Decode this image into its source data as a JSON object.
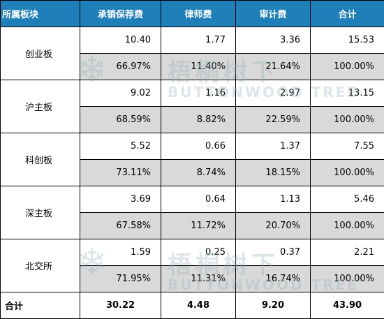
{
  "header": [
    "所属板块",
    "承销保荐费",
    "律师费",
    "审计费",
    "合计"
  ],
  "rows": [
    {
      "board": "创业板",
      "values": [
        "10.40",
        "1.77",
        "3.36",
        "15.53"
      ],
      "pct": [
        "66.97%",
        "11.40%",
        "21.64%",
        "100.00%"
      ]
    },
    {
      "board": "沪主板",
      "values": [
        "9.02",
        "1.16",
        "2.97",
        "13.15"
      ],
      "pct": [
        "68.59%",
        "8.82%",
        "22.59%",
        "100.00%"
      ]
    },
    {
      "board": "科创板",
      "values": [
        "5.52",
        "0.66",
        "1.37",
        "7.55"
      ],
      "pct": [
        "73.11%",
        "8.74%",
        "18.15%",
        "100.00%"
      ]
    },
    {
      "board": "深主板",
      "values": [
        "3.69",
        "0.64",
        "1.13",
        "5.46"
      ],
      "pct": [
        "67.58%",
        "11.72%",
        "20.70%",
        "100.00%"
      ]
    },
    {
      "board": "北交所",
      "values": [
        "1.59",
        "0.25",
        "0.37",
        "2.21"
      ],
      "pct": [
        "71.95%",
        "11.31%",
        "16.74%",
        "100.00%"
      ]
    }
  ],
  "total": {
    "label": "合计",
    "values": [
      "30.22",
      "4.48",
      "9.20",
      "43.90"
    ]
  },
  "watermark": {
    "cn": "梧桐树下",
    "en": "BUTTONWOOD TREE",
    "icon": "snowflake-logo-icon"
  }
}
